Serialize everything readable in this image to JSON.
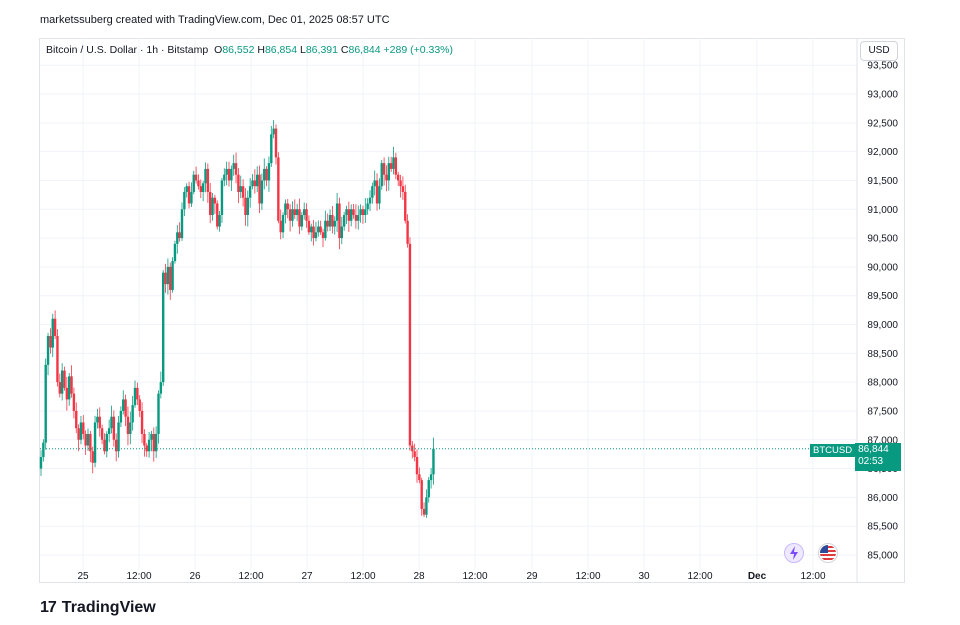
{
  "caption": "marketssuberg created with TradingView.com, Dec 01, 2025 08:57 UTC",
  "legend": {
    "symbol_line": "Bitcoin / U.S. Dollar · 1h · Bitstamp",
    "o_label": "O",
    "o_value": "86,552",
    "h_label": "H",
    "h_value": "86,854",
    "l_label": "L",
    "l_value": "86,391",
    "c_label": "C",
    "c_value": "86,844",
    "change": "+289 (+0.33%)"
  },
  "currency_button": "USD",
  "current_price": {
    "symbol": "BTCUSD",
    "price": "86,844",
    "countdown": "02:53",
    "value": 86844
  },
  "brand": {
    "mark": "17",
    "name": "TradingView"
  },
  "icons": [
    "lightning-event-icon",
    "us-flag-icon"
  ],
  "colors": {
    "up": "#089981",
    "down": "#f23645",
    "grid": "#f0f3fa"
  },
  "chart_data": {
    "type": "candlestick",
    "title": "Bitcoin / U.S. Dollar · 1h · Bitstamp",
    "y_tick_labels": [
      "85,000",
      "85,500",
      "86,000",
      "86,500",
      "87,000",
      "87,500",
      "88,000",
      "88,500",
      "89,000",
      "89,500",
      "90,000",
      "90,500",
      "91,000",
      "91,500",
      "92,000",
      "92,500",
      "93,000",
      "93,500"
    ],
    "y_ticks": [
      85000,
      85500,
      86000,
      86500,
      87000,
      87500,
      88000,
      88500,
      89000,
      89500,
      90000,
      90500,
      91000,
      91500,
      92000,
      92500,
      93000,
      93500
    ],
    "x_tick_labels": [
      "25",
      "12:00",
      "26",
      "12:00",
      "27",
      "12:00",
      "28",
      "12:00",
      "29",
      "12:00",
      "30",
      "12:00",
      "Dec",
      "12:00"
    ],
    "ylim": [
      84800,
      93500
    ],
    "grid": true,
    "closes": [
      86700,
      86950,
      88300,
      88800,
      88600,
      89100,
      88800,
      88000,
      87800,
      88200,
      87900,
      87700,
      88100,
      87800,
      87500,
      87200,
      87000,
      87300,
      87100,
      86900,
      87100,
      86800,
      86600,
      87300,
      87400,
      87200,
      87000,
      86800,
      87100,
      87200,
      87400,
      87000,
      86800,
      87300,
      87500,
      87700,
      87400,
      87100,
      87300,
      87600,
      87900,
      87700,
      87500,
      87100,
      86900,
      86800,
      87000,
      87100,
      86800,
      87100,
      87800,
      88000,
      89900,
      89700,
      90000,
      89600,
      90100,
      90400,
      90600,
      90500,
      91000,
      91300,
      91400,
      91100,
      91300,
      91600,
      91500,
      91400,
      91300,
      91450,
      91700,
      91300,
      90900,
      91200,
      91100,
      90700,
      90900,
      91500,
      91600,
      91700,
      91500,
      91700,
      91800,
      91600,
      91300,
      91400,
      91200,
      90900,
      91200,
      91400,
      91500,
      91400,
      91600,
      91100,
      91500,
      91700,
      91500,
      91800,
      92300,
      92400,
      91900,
      90800,
      90600,
      90900,
      91100,
      91000,
      90800,
      91000,
      90900,
      91000,
      90700,
      90900,
      91000,
      90800,
      90600,
      90700,
      90500,
      90600,
      90700,
      90600,
      90500,
      90800,
      90700,
      90900,
      90700,
      90800,
      91100,
      90500,
      90700,
      90900,
      91000,
      90800,
      91000,
      90900,
      90800,
      90900,
      91000,
      90900,
      91000,
      91100,
      91200,
      91400,
      91500,
      91100,
      91400,
      91800,
      91600,
      91500,
      91800,
      91700,
      91900,
      91600,
      91500,
      91400,
      91300,
      90800,
      90400,
      86900,
      86800,
      86700,
      86400,
      86300,
      85800,
      85700,
      86000,
      86300,
      86400,
      86844
    ]
  }
}
